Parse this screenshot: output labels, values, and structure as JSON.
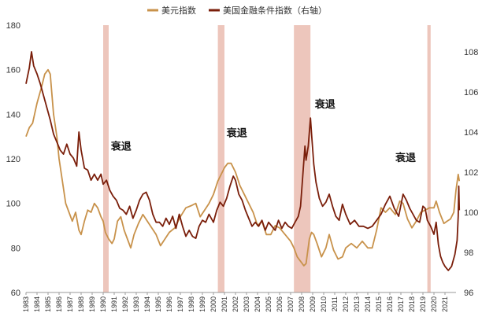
{
  "chart_data": {
    "type": "line",
    "title": "",
    "xlabel": "",
    "ylabel": "",
    "x_range": [
      1983,
      2022
    ],
    "x_ticks": [
      "1983",
      "1984",
      "1985",
      "1986",
      "1987",
      "1988",
      "1989",
      "1990",
      "1991",
      "1992",
      "1993",
      "1994",
      "1995",
      "1996",
      "1997",
      "1998",
      "1999",
      "2000",
      "2001",
      "2002",
      "2003",
      "2004",
      "2005",
      "2006",
      "2007",
      "2008",
      "2009",
      "2010",
      "2011",
      "2012",
      "2013",
      "2014",
      "2015",
      "2016",
      "2017",
      "2018",
      "2019",
      "2020",
      "2021"
    ],
    "y_left": {
      "min": 60,
      "max": 180,
      "ticks": [
        "60",
        "80",
        "100",
        "120",
        "140",
        "160",
        "180"
      ]
    },
    "y_right": {
      "min": 96,
      "max": 109.33,
      "ticks": [
        "96",
        "98",
        "100",
        "102",
        "104",
        "106",
        "108"
      ]
    },
    "legend_position": "top-center",
    "series": [
      {
        "name": "美元指数",
        "axis": "left",
        "color": "#C8924B",
        "points": [
          [
            1983.0,
            130
          ],
          [
            1983.3,
            134
          ],
          [
            1983.6,
            136
          ],
          [
            1984.0,
            145
          ],
          [
            1984.4,
            152
          ],
          [
            1984.7,
            158
          ],
          [
            1985.0,
            160
          ],
          [
            1985.2,
            158
          ],
          [
            1985.5,
            140
          ],
          [
            1985.8,
            130
          ],
          [
            1986.0,
            120
          ],
          [
            1986.3,
            110
          ],
          [
            1986.6,
            100
          ],
          [
            1986.9,
            96
          ],
          [
            1987.2,
            92
          ],
          [
            1987.5,
            96
          ],
          [
            1987.8,
            88
          ],
          [
            1988.0,
            86
          ],
          [
            1988.3,
            92
          ],
          [
            1988.6,
            97
          ],
          [
            1988.9,
            96
          ],
          [
            1989.2,
            100
          ],
          [
            1989.5,
            98
          ],
          [
            1989.8,
            94
          ],
          [
            1990.0,
            92
          ],
          [
            1990.2,
            87
          ],
          [
            1990.5,
            84
          ],
          [
            1990.8,
            82
          ],
          [
            1991.0,
            84
          ],
          [
            1991.3,
            92
          ],
          [
            1991.6,
            94
          ],
          [
            1991.9,
            88
          ],
          [
            1992.2,
            84
          ],
          [
            1992.5,
            80
          ],
          [
            1992.8,
            86
          ],
          [
            1993.2,
            91
          ],
          [
            1993.6,
            95
          ],
          [
            1994.0,
            92
          ],
          [
            1994.4,
            89
          ],
          [
            1994.8,
            86
          ],
          [
            1995.2,
            81
          ],
          [
            1995.6,
            84
          ],
          [
            1996.0,
            87
          ],
          [
            1996.5,
            89
          ],
          [
            1997.0,
            94
          ],
          [
            1997.5,
            98
          ],
          [
            1998.0,
            99
          ],
          [
            1998.4,
            100
          ],
          [
            1998.8,
            94
          ],
          [
            1999.2,
            97
          ],
          [
            1999.6,
            100
          ],
          [
            2000.0,
            104
          ],
          [
            2000.4,
            110
          ],
          [
            2000.8,
            114
          ],
          [
            2001.0,
            116
          ],
          [
            2001.3,
            118
          ],
          [
            2001.6,
            118
          ],
          [
            2002.0,
            114
          ],
          [
            2002.4,
            108
          ],
          [
            2002.8,
            104
          ],
          [
            2003.2,
            100
          ],
          [
            2003.6,
            96
          ],
          [
            2004.0,
            90
          ],
          [
            2004.4,
            92
          ],
          [
            2004.8,
            86
          ],
          [
            2005.2,
            86
          ],
          [
            2005.6,
            90
          ],
          [
            2006.0,
            89
          ],
          [
            2006.5,
            86
          ],
          [
            2007.0,
            83
          ],
          [
            2007.3,
            80
          ],
          [
            2007.6,
            76
          ],
          [
            2007.9,
            74
          ],
          [
            2008.2,
            72
          ],
          [
            2008.4,
            73
          ],
          [
            2008.7,
            84
          ],
          [
            2008.9,
            87
          ],
          [
            2009.1,
            86
          ],
          [
            2009.4,
            82
          ],
          [
            2009.8,
            76
          ],
          [
            2010.2,
            80
          ],
          [
            2010.5,
            86
          ],
          [
            2010.9,
            79
          ],
          [
            2011.3,
            75
          ],
          [
            2011.7,
            76
          ],
          [
            2012.0,
            80
          ],
          [
            2012.5,
            82
          ],
          [
            2013.0,
            80
          ],
          [
            2013.5,
            83
          ],
          [
            2014.0,
            80
          ],
          [
            2014.4,
            80
          ],
          [
            2014.8,
            88
          ],
          [
            2015.2,
            98
          ],
          [
            2015.6,
            96
          ],
          [
            2016.0,
            98
          ],
          [
            2016.5,
            95
          ],
          [
            2016.9,
            101
          ],
          [
            2017.2,
            100
          ],
          [
            2017.6,
            93
          ],
          [
            2018.0,
            89
          ],
          [
            2018.4,
            92
          ],
          [
            2018.8,
            96
          ],
          [
            2019.2,
            97
          ],
          [
            2019.6,
            98
          ],
          [
            2020.0,
            98
          ],
          [
            2020.2,
            101
          ],
          [
            2020.5,
            96
          ],
          [
            2020.9,
            91
          ],
          [
            2021.2,
            92
          ],
          [
            2021.5,
            93
          ],
          [
            2021.8,
            96
          ],
          [
            2022.0,
            106
          ],
          [
            2022.2,
            113
          ],
          [
            2022.3,
            110
          ]
        ]
      },
      {
        "name": "美国金融条件指数（右轴）",
        "axis": "right",
        "color": "#7A1E0A",
        "points": [
          [
            1983.0,
            106.4
          ],
          [
            1983.3,
            107.2
          ],
          [
            1983.5,
            108.0
          ],
          [
            1983.7,
            107.3
          ],
          [
            1984.0,
            106.9
          ],
          [
            1984.3,
            106.4
          ],
          [
            1984.6,
            105.8
          ],
          [
            1984.9,
            105.2
          ],
          [
            1985.2,
            104.6
          ],
          [
            1985.5,
            103.9
          ],
          [
            1985.8,
            103.5
          ],
          [
            1986.1,
            103.1
          ],
          [
            1986.4,
            102.9
          ],
          [
            1986.7,
            103.4
          ],
          [
            1987.0,
            102.9
          ],
          [
            1987.3,
            102.7
          ],
          [
            1987.6,
            102.3
          ],
          [
            1987.8,
            104.0
          ],
          [
            1988.0,
            103.1
          ],
          [
            1988.3,
            102.2
          ],
          [
            1988.6,
            102.1
          ],
          [
            1988.9,
            101.6
          ],
          [
            1989.2,
            101.9
          ],
          [
            1989.5,
            101.6
          ],
          [
            1989.8,
            101.9
          ],
          [
            1990.0,
            101.4
          ],
          [
            1990.3,
            101.6
          ],
          [
            1990.6,
            101.1
          ],
          [
            1990.9,
            100.8
          ],
          [
            1991.2,
            100.6
          ],
          [
            1991.5,
            100.2
          ],
          [
            1991.8,
            100.1
          ],
          [
            1992.1,
            99.9
          ],
          [
            1992.4,
            100.3
          ],
          [
            1992.7,
            99.7
          ],
          [
            1993.0,
            100.1
          ],
          [
            1993.3,
            100.6
          ],
          [
            1993.6,
            100.9
          ],
          [
            1993.9,
            101.0
          ],
          [
            1994.2,
            100.6
          ],
          [
            1994.5,
            99.9
          ],
          [
            1994.8,
            99.5
          ],
          [
            1995.1,
            99.5
          ],
          [
            1995.4,
            99.3
          ],
          [
            1995.7,
            99.7
          ],
          [
            1996.0,
            99.4
          ],
          [
            1996.3,
            99.8
          ],
          [
            1996.6,
            99.2
          ],
          [
            1996.9,
            99.9
          ],
          [
            1997.2,
            99.3
          ],
          [
            1997.5,
            98.8
          ],
          [
            1997.8,
            99.1
          ],
          [
            1998.1,
            98.8
          ],
          [
            1998.4,
            98.7
          ],
          [
            1998.7,
            99.3
          ],
          [
            1999.0,
            99.6
          ],
          [
            1999.3,
            99.5
          ],
          [
            1999.6,
            99.9
          ],
          [
            2000.0,
            99.5
          ],
          [
            2000.3,
            100.1
          ],
          [
            2000.6,
            100.5
          ],
          [
            2000.9,
            100.3
          ],
          [
            2001.2,
            100.7
          ],
          [
            2001.5,
            101.3
          ],
          [
            2001.8,
            101.8
          ],
          [
            2002.0,
            101.6
          ],
          [
            2002.3,
            100.9
          ],
          [
            2002.6,
            100.6
          ],
          [
            2002.9,
            100.1
          ],
          [
            2003.2,
            99.7
          ],
          [
            2003.5,
            99.3
          ],
          [
            2003.8,
            99.5
          ],
          [
            2004.1,
            99.3
          ],
          [
            2004.4,
            99.6
          ],
          [
            2004.7,
            99.1
          ],
          [
            2005.0,
            99.5
          ],
          [
            2005.3,
            99.3
          ],
          [
            2005.6,
            99.1
          ],
          [
            2005.9,
            99.6
          ],
          [
            2006.2,
            99.2
          ],
          [
            2006.5,
            99.5
          ],
          [
            2006.8,
            99.3
          ],
          [
            2007.1,
            99.2
          ],
          [
            2007.4,
            99.5
          ],
          [
            2007.7,
            99.8
          ],
          [
            2007.9,
            100.3
          ],
          [
            2008.1,
            101.8
          ],
          [
            2008.3,
            103.3
          ],
          [
            2008.4,
            102.6
          ],
          [
            2008.6,
            103.3
          ],
          [
            2008.8,
            104.7
          ],
          [
            2008.9,
            103.9
          ],
          [
            2009.1,
            102.4
          ],
          [
            2009.3,
            101.5
          ],
          [
            2009.6,
            100.7
          ],
          [
            2009.9,
            100.3
          ],
          [
            2010.2,
            100.5
          ],
          [
            2010.5,
            100.9
          ],
          [
            2010.8,
            100.3
          ],
          [
            2011.1,
            99.8
          ],
          [
            2011.4,
            99.6
          ],
          [
            2011.7,
            100.4
          ],
          [
            2012.0,
            99.9
          ],
          [
            2012.4,
            99.4
          ],
          [
            2012.8,
            99.6
          ],
          [
            2013.2,
            99.3
          ],
          [
            2013.6,
            99.3
          ],
          [
            2014.0,
            99.2
          ],
          [
            2014.4,
            99.3
          ],
          [
            2014.8,
            99.6
          ],
          [
            2015.2,
            99.9
          ],
          [
            2015.6,
            100.4
          ],
          [
            2016.0,
            100.8
          ],
          [
            2016.4,
            100.2
          ],
          [
            2016.8,
            99.8
          ],
          [
            2017.2,
            100.9
          ],
          [
            2017.5,
            100.6
          ],
          [
            2017.8,
            100.2
          ],
          [
            2018.1,
            99.9
          ],
          [
            2018.4,
            99.6
          ],
          [
            2018.7,
            99.5
          ],
          [
            2019.0,
            100.3
          ],
          [
            2019.2,
            100.2
          ],
          [
            2019.4,
            99.6
          ],
          [
            2019.7,
            99.3
          ],
          [
            2020.0,
            98.9
          ],
          [
            2020.2,
            99.5
          ],
          [
            2020.4,
            98.4
          ],
          [
            2020.6,
            97.8
          ],
          [
            2020.8,
            97.5
          ],
          [
            2021.0,
            97.3
          ],
          [
            2021.3,
            97.1
          ],
          [
            2021.6,
            97.3
          ],
          [
            2021.9,
            97.9
          ],
          [
            2022.1,
            98.6
          ],
          [
            2022.2,
            99.8
          ],
          [
            2022.25,
            101.3
          ],
          [
            2022.3,
            100.1
          ]
        ]
      }
    ],
    "recession_bands": [
      [
        1990.0,
        1990.5
      ],
      [
        2000.4,
        2001.0
      ],
      [
        2007.3,
        2008.8
      ],
      [
        2019.4,
        2019.7
      ]
    ],
    "recession_color": "#EDC6BC",
    "annotations": [
      {
        "text": "衰退",
        "x": 1990.7,
        "y": 124
      },
      {
        "text": "衰退",
        "x": 2001.2,
        "y": 130
      },
      {
        "text": "衰退",
        "x": 2009.2,
        "y": 143
      },
      {
        "text": "衰退",
        "x": 2016.5,
        "y": 119
      }
    ]
  }
}
